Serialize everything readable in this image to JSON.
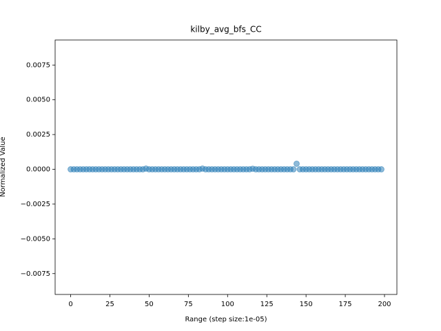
{
  "chart_data": {
    "type": "scatter",
    "title": "kilby_avg_bfs_CC",
    "x_label": "Range (step size:1e-05)",
    "y_label": "Normalized Value",
    "color": "#1f77b4",
    "x": [
      0,
      2,
      4,
      6,
      8,
      10,
      12,
      14,
      16,
      18,
      20,
      22,
      24,
      26,
      28,
      30,
      32,
      34,
      36,
      38,
      40,
      42,
      44,
      46,
      48,
      50,
      52,
      54,
      56,
      58,
      60,
      62,
      64,
      66,
      68,
      70,
      72,
      74,
      76,
      78,
      80,
      82,
      84,
      86,
      88,
      90,
      92,
      94,
      96,
      98,
      100,
      102,
      104,
      106,
      108,
      110,
      112,
      114,
      116,
      118,
      120,
      122,
      124,
      126,
      128,
      130,
      132,
      134,
      136,
      138,
      140,
      142,
      144,
      146,
      148,
      150,
      152,
      154,
      156,
      158,
      160,
      162,
      164,
      166,
      168,
      170,
      172,
      174,
      176,
      178,
      180,
      182,
      184,
      186,
      188,
      190,
      192,
      194,
      196,
      198
    ],
    "values": [
      0,
      0,
      0,
      0,
      0,
      0,
      0,
      0,
      0,
      0,
      0,
      0,
      0,
      0,
      0,
      0,
      0,
      0,
      0,
      0,
      0,
      0,
      0,
      0,
      5e-05,
      0,
      0,
      0,
      0,
      0,
      0,
      0,
      0,
      0,
      0,
      0,
      0,
      0,
      0,
      0,
      0,
      0,
      5e-05,
      0,
      0,
      0,
      0,
      0,
      0,
      0,
      0,
      0,
      0,
      0,
      0,
      0,
      0,
      0,
      4e-05,
      0,
      0,
      0,
      0,
      0,
      0,
      0,
      0,
      0,
      0,
      0,
      0,
      0,
      0.0004,
      0,
      0,
      0,
      0,
      0,
      0,
      0,
      0,
      0,
      0,
      0,
      0,
      0,
      0,
      0,
      0,
      0,
      0,
      0,
      0,
      0,
      0,
      0,
      0,
      0,
      0,
      0
    ],
    "xlim": [
      -9.9,
      207.9
    ],
    "xticks": [
      0,
      25,
      50,
      75,
      100,
      125,
      150,
      175,
      200
    ],
    "ylim": [
      -0.009,
      0.0093
    ],
    "yticks": [
      {
        "value": -0.0075,
        "label": "−0.0075"
      },
      {
        "value": -0.005,
        "label": "−0.0050"
      },
      {
        "value": -0.0025,
        "label": "−0.0025"
      },
      {
        "value": 0,
        "label": "0.0000"
      },
      {
        "value": 0.0025,
        "label": "0.0025"
      },
      {
        "value": 0.005,
        "label": "0.0050"
      },
      {
        "value": 0.0075,
        "label": "0.0075"
      }
    ]
  }
}
